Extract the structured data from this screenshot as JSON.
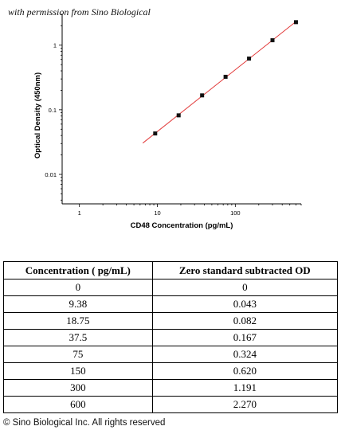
{
  "header": {
    "permission_text": "with permission from Sino Biological"
  },
  "chart_data": {
    "type": "scatter",
    "x_scale": "log",
    "y_scale": "log",
    "xlabel": "CD48 Concentration (pg/mL)",
    "ylabel": "Optical Density (450nm)",
    "x_ticks": [
      "1",
      "10",
      "100"
    ],
    "y_ticks": [
      "0.01",
      "0.1",
      "1"
    ],
    "xlim": [
      0.6,
      700
    ],
    "ylim": [
      0.0035,
      3.0
    ],
    "grid": false,
    "legend": "none",
    "colors": {
      "points": "#111111",
      "fit_line": "#e23b3b",
      "axes": "#000000"
    },
    "series": [
      {
        "x": [
          9.38,
          18.75,
          37.5,
          75,
          150,
          300,
          600
        ],
        "y": [
          0.043,
          0.082,
          0.167,
          0.324,
          0.62,
          1.191,
          2.27
        ]
      }
    ],
    "fit_line": {
      "x": [
        6.5,
        600
      ]
    }
  },
  "table": {
    "headers": [
      "Concentration ( pg/mL)",
      "Zero standard subtracted OD"
    ],
    "rows": [
      [
        "0",
        "0"
      ],
      [
        "9.38",
        "0.043"
      ],
      [
        "18.75",
        "0.082"
      ],
      [
        "37.5",
        "0.167"
      ],
      [
        "75",
        "0.324"
      ],
      [
        "150",
        "0.620"
      ],
      [
        "300",
        "1.191"
      ],
      [
        "600",
        "2.270"
      ]
    ]
  },
  "footer": {
    "copyright": "© Sino Biological Inc. All rights reserved"
  }
}
